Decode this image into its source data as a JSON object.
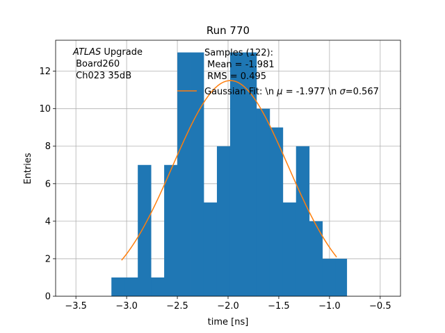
{
  "chart_data": {
    "type": "bar",
    "title": "Run 770",
    "xlabel": "time [ns]",
    "ylabel": "Entries",
    "xlim": [
      -3.7,
      -0.3
    ],
    "ylim": [
      0,
      13.65
    ],
    "xticks": [
      -3.5,
      -3.0,
      -2.5,
      -2.0,
      -1.5,
      -1.0,
      -0.5
    ],
    "xtick_labels": [
      "−3.5",
      "−3.0",
      "−2.5",
      "−2.0",
      "−1.5",
      "−1.0",
      "−0.5"
    ],
    "yticks": [
      0,
      2,
      4,
      6,
      8,
      10,
      12
    ],
    "ytick_labels": [
      "0",
      "2",
      "4",
      "6",
      "8",
      "10",
      "12"
    ],
    "grid": true,
    "histogram": {
      "color": "#1f77b4",
      "bin_edges": [
        -3.15,
        -3.02,
        -2.89,
        -2.76,
        -2.63,
        -2.5,
        -2.37,
        -2.24,
        -2.11,
        -1.98,
        -1.85,
        -1.72,
        -1.59,
        -1.46,
        -1.33,
        -1.2,
        -1.07,
        -0.94,
        -0.83
      ],
      "counts": [
        1,
        1,
        7,
        1,
        7,
        13,
        13,
        5,
        8,
        13,
        13,
        10,
        9,
        5,
        8,
        4,
        2,
        2
      ]
    },
    "fit_curve": {
      "name": "Gaussian Fit: \\n $\\mu$ = -1.977 \\n $\\sigma$=0.567",
      "color": "#ff7f0e",
      "amplitude": 11.5,
      "mu": -1.977,
      "sigma": 0.567,
      "x_range": [
        -3.05,
        -0.93
      ]
    },
    "annotations": {
      "atlas_italic": "ATLAS",
      "atlas_rest": " Upgrade",
      "board": " Board260",
      "channel": " Ch023 35dB"
    },
    "legend": {
      "samples_line1": "Samples (122):",
      "samples_line2": " Mean = -1.981",
      "samples_line3": " RMS = 0.495",
      "fit_prefix": "Gaussian Fit: \\n ",
      "fit_mu_symbol": "μ",
      "fit_mid": " = -1.977 \\n ",
      "fit_sigma_symbol": "σ",
      "fit_suffix": "=0.567",
      "placement": "top-right"
    }
  }
}
